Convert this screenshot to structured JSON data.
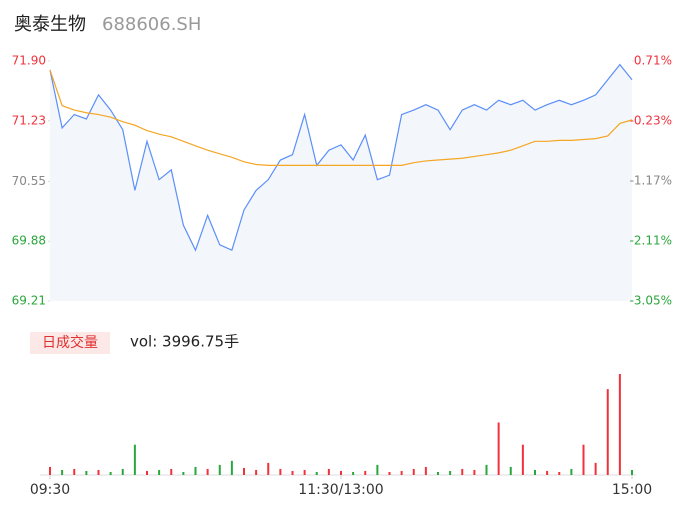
{
  "chart_data": {
    "type": "line",
    "title": "奥泰生物",
    "subtitle": "688606.SH",
    "x": [
      0,
      5,
      10,
      15,
      20,
      25,
      30,
      35,
      40,
      45,
      50,
      55,
      60,
      65,
      70,
      75,
      80,
      85,
      90,
      95,
      100,
      105,
      110,
      115,
      120,
      125,
      130,
      135,
      140,
      145,
      150,
      155,
      160,
      165,
      170,
      175,
      180,
      185,
      190,
      195,
      200,
      205,
      210,
      215,
      220,
      225,
      230,
      235,
      240
    ],
    "xlim": [
      0,
      240
    ],
    "xticks": [
      {
        "value": 0,
        "label": "09:30"
      },
      {
        "value": 120,
        "label": "11:30/13:00"
      },
      {
        "value": 240,
        "label": "15:00"
      }
    ],
    "series": [
      {
        "color": "#5b8ff9",
        "values": [
          71.8,
          71.15,
          71.3,
          71.25,
          71.52,
          71.35,
          71.13,
          70.45,
          71.0,
          70.57,
          70.68,
          70.06,
          69.78,
          70.17,
          69.84,
          69.78,
          70.23,
          70.45,
          70.57,
          70.79,
          70.85,
          71.3,
          70.73,
          70.9,
          70.96,
          70.79,
          71.07,
          70.57,
          70.62,
          71.3,
          71.35,
          71.41,
          71.35,
          71.13,
          71.35,
          71.41,
          71.35,
          71.46,
          71.41,
          71.46,
          71.35,
          71.41,
          71.46,
          71.41,
          71.46,
          71.52,
          71.69,
          71.86,
          71.69
        ]
      },
      {
        "color": "#f5a623",
        "values": [
          71.8,
          71.4,
          71.35,
          71.32,
          71.3,
          71.27,
          71.22,
          71.18,
          71.12,
          71.08,
          71.05,
          71.0,
          70.95,
          70.9,
          70.86,
          70.82,
          70.77,
          70.74,
          70.73,
          70.73,
          70.73,
          70.73,
          70.73,
          70.73,
          70.73,
          70.73,
          70.73,
          70.73,
          70.73,
          70.73,
          70.76,
          70.78,
          70.79,
          70.8,
          70.81,
          70.83,
          70.85,
          70.87,
          70.9,
          70.95,
          71.0,
          71.0,
          71.01,
          71.01,
          71.02,
          71.03,
          71.06,
          71.2,
          71.24
        ]
      }
    ],
    "ylim": [
      69.21,
      71.9
    ],
    "yticks": [
      69.21,
      69.88,
      70.55,
      71.23,
      {
        "value": 71.9,
        "label": "71.90"
      }
    ],
    "y2lim": [
      -3.05,
      0.71
    ],
    "y2ticks": [
      {
        "value": -3.05,
        "label": "-3.05%"
      },
      {
        "value": -2.11,
        "label": "-2.11%"
      },
      {
        "value": -1.17,
        "label": "-1.17%"
      },
      {
        "value": -0.23,
        "label": "-0.23%"
      },
      {
        "value": 0.71,
        "label": "0.71%"
      }
    ],
    "up_color": "#f0323c",
    "flat_color": "#888888",
    "down_color": "#2aa63c",
    "volume": {
      "label": "日成交量",
      "text": "vol: 3996.75手",
      "values": [
        8,
        5,
        6,
        4,
        5,
        3,
        6,
        30,
        4,
        5,
        6,
        3,
        8,
        6,
        10,
        14,
        7,
        5,
        12,
        6,
        4,
        5,
        3,
        6,
        4,
        3,
        4,
        10,
        3,
        4,
        6,
        8,
        3,
        4,
        6,
        5,
        10,
        52,
        8,
        30,
        5,
        4,
        3,
        6,
        30,
        12,
        85,
        100,
        5
      ],
      "ylim": [
        0,
        100
      ]
    }
  }
}
